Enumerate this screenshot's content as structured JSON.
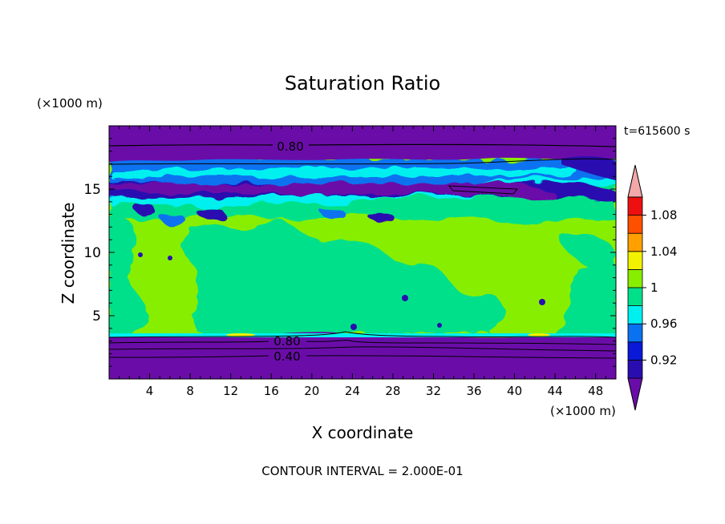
{
  "chart_data": {
    "type": "contour",
    "title": "Saturation Ratio",
    "xlabel": "X coordinate",
    "ylabel": "Z coordinate",
    "x_unit": "(×1000 m)",
    "y_unit": "(×1000 m)",
    "time_label": "t=615600 s",
    "footer": "CONTOUR INTERVAL = 2.000E-01",
    "xlim": [
      0,
      50
    ],
    "ylim": [
      0,
      20
    ],
    "x_ticks": [
      4,
      8,
      12,
      16,
      20,
      24,
      28,
      32,
      36,
      40,
      44,
      48
    ],
    "y_ticks": [
      5,
      10,
      15
    ],
    "contour_line_labels": [
      "0.80",
      "0.80",
      "0.40"
    ],
    "colorbar": {
      "tick_labels": [
        "0.92",
        "0.96",
        "1",
        "1.04",
        "1.08"
      ],
      "levels": [
        0.9,
        0.92,
        0.94,
        0.96,
        0.98,
        1.0,
        1.02,
        1.04,
        1.06,
        1.08,
        1.1
      ],
      "colors": [
        "#6a0da8",
        "#2a0db0",
        "#0a18d8",
        "#0a72f0",
        "#00f0f0",
        "#00e08a",
        "#88ee00",
        "#f2f200",
        "#ffa000",
        "#ff5000",
        "#ee1010",
        "#f2a8a8"
      ]
    }
  }
}
